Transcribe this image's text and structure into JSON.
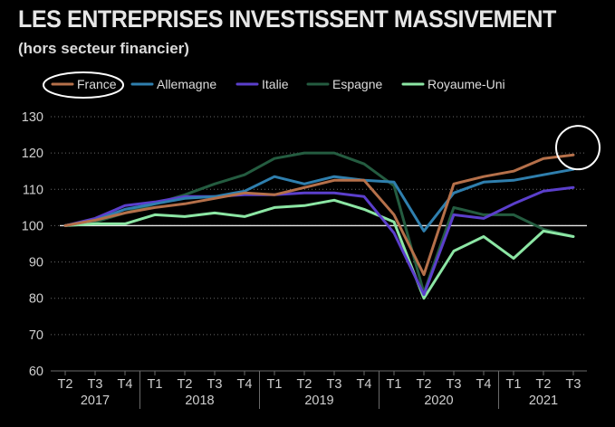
{
  "chart_data": {
    "type": "line",
    "title": "LES ENTREPRISES INVESTISSENT MASSIVEMENT",
    "subtitle": "(hors secteur financier)",
    "xlabel": "",
    "ylabel": "",
    "ylim": [
      60,
      130
    ],
    "yticks": [
      60,
      70,
      80,
      90,
      100,
      110,
      120,
      130
    ],
    "baseline": 100,
    "categories": [
      "T2",
      "T3",
      "T4",
      "T1",
      "T2",
      "T3",
      "T4",
      "T1",
      "T2",
      "T3",
      "T4",
      "T1",
      "T2",
      "T3",
      "T4",
      "T1",
      "T2",
      "T3"
    ],
    "years": [
      {
        "label": "2017",
        "center_index": 1
      },
      {
        "label": "2018",
        "center_index": 4.5
      },
      {
        "label": "2019",
        "center_index": 8.5
      },
      {
        "label": "2020",
        "center_index": 12.5
      },
      {
        "label": "2021",
        "center_index": 16
      }
    ],
    "year_separators_after_index": [
      2,
      6,
      10,
      14
    ],
    "series": [
      {
        "name": "France",
        "color": "#b5704a",
        "values": [
          100,
          101.5,
          103.5,
          105,
          106,
          107.5,
          109,
          108.5,
          110.5,
          112.5,
          112.5,
          103,
          86.5,
          111.5,
          113.5,
          115,
          118.5,
          119.5
        ]
      },
      {
        "name": "Allemagne",
        "color": "#2f7fae",
        "values": [
          100,
          101.5,
          104.5,
          106,
          107.5,
          108,
          109.5,
          113.5,
          111.5,
          113.5,
          112.5,
          112,
          98.5,
          109,
          112,
          112.5,
          114,
          115.5
        ]
      },
      {
        "name": "Italie",
        "color": "#5b3fcc",
        "values": [
          100,
          102,
          105.5,
          106.5,
          108,
          108,
          108.5,
          108.5,
          109,
          109,
          108,
          98,
          81,
          103,
          102,
          106,
          109.5,
          110.5
        ]
      },
      {
        "name": "Espagne",
        "color": "#245c40",
        "values": [
          100,
          101,
          103.5,
          106,
          108.5,
          111.5,
          114,
          118.5,
          120,
          120,
          117,
          111,
          81.5,
          105,
          103,
          103,
          99,
          97
        ]
      },
      {
        "name": "Royaume-Uni",
        "color": "#8ce6a4",
        "values": [
          100,
          100.5,
          100.5,
          103,
          102.5,
          103.5,
          102.5,
          105,
          105.5,
          107,
          104.5,
          101,
          80,
          93,
          97,
          91,
          98.5,
          97
        ]
      }
    ],
    "annotations": [
      {
        "type": "ellipse",
        "target": "legend-France"
      },
      {
        "type": "circle",
        "target": "France-last-point"
      }
    ],
    "legend_position": "top-left",
    "colors": {
      "background": "#000000",
      "text": "#dddddd",
      "grid": "#6a6a6a",
      "baseline": "#e6e6e6",
      "annotation": "#ffffff"
    }
  }
}
